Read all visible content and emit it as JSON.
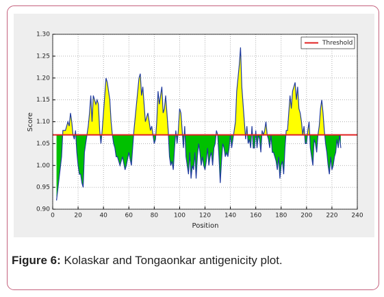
{
  "chart_data": {
    "type": "area-threshold",
    "xlabel": "Position",
    "ylabel": "Score",
    "x": [
      3,
      5,
      7,
      8,
      10,
      12,
      13,
      14,
      15,
      16,
      17,
      18,
      19,
      20,
      21,
      22,
      23,
      24,
      25,
      26,
      27,
      28,
      29,
      30,
      31,
      32,
      33,
      34,
      35,
      36,
      37,
      38,
      39,
      40,
      41,
      42,
      43,
      44,
      45,
      46,
      47,
      48,
      49,
      50,
      51,
      52,
      53,
      55,
      57,
      58,
      60,
      62,
      64,
      66,
      67,
      68,
      69,
      70,
      71,
      72,
      73,
      75,
      77,
      78,
      79,
      80,
      81,
      82,
      83,
      84,
      85,
      86,
      87,
      88,
      89,
      90,
      91,
      92,
      93,
      94,
      95,
      96,
      97,
      98,
      99,
      100,
      101,
      102,
      103,
      104,
      105,
      106,
      107,
      108,
      109,
      110,
      111,
      112,
      113,
      114,
      115,
      116,
      117,
      118,
      119,
      120,
      121,
      122,
      123,
      124,
      125,
      126,
      127,
      128,
      129,
      130,
      131,
      132,
      133,
      134,
      135,
      136,
      137,
      138,
      139,
      140,
      141,
      142,
      143,
      144,
      145,
      146,
      147,
      148,
      149,
      150,
      151,
      152,
      153,
      154,
      155,
      156,
      157,
      158,
      159,
      160,
      161,
      162,
      163,
      164,
      165,
      166,
      167,
      168,
      169,
      170,
      171,
      172,
      173,
      174,
      175,
      176,
      177,
      178,
      179,
      180,
      181,
      182,
      183,
      184,
      185,
      186,
      187,
      188,
      189,
      190,
      191,
      192,
      193,
      194,
      195,
      196,
      197,
      198,
      199,
      200,
      201,
      202,
      203,
      204,
      205,
      206,
      207,
      208,
      209,
      210,
      211,
      212,
      213,
      214,
      215,
      216,
      217,
      218,
      219,
      220,
      221,
      222,
      223,
      224,
      225,
      226,
      227
    ],
    "series": [
      {
        "color": "#1f3a9e",
        "above_color": "#ffff00",
        "below_color": "#00c000",
        "values": [
          0.92,
          0.97,
          1.02,
          1.08,
          1.08,
          1.1,
          1.09,
          1.12,
          1.1,
          1.07,
          1.06,
          1.08,
          1.03,
          1.0,
          0.98,
          0.98,
          0.96,
          0.95,
          1.03,
          1.05,
          1.07,
          1.09,
          1.12,
          1.16,
          1.1,
          1.16,
          1.15,
          1.14,
          1.15,
          1.14,
          1.08,
          1.05,
          1.08,
          1.12,
          1.16,
          1.2,
          1.19,
          1.17,
          1.15,
          1.1,
          1.07,
          1.05,
          1.04,
          1.02,
          1.02,
          1.01,
          1.0,
          1.02,
          0.99,
          1.0,
          1.03,
          1.0,
          1.08,
          1.14,
          1.17,
          1.2,
          1.21,
          1.16,
          1.18,
          1.14,
          1.1,
          1.12,
          1.08,
          1.09,
          1.07,
          1.05,
          1.06,
          1.1,
          1.17,
          1.14,
          1.16,
          1.18,
          1.12,
          1.13,
          1.16,
          1.12,
          1.08,
          1.02,
          1.0,
          1.01,
          0.99,
          1.04,
          1.08,
          1.05,
          1.08,
          1.13,
          1.12,
          1.08,
          1.04,
          1.09,
          1.02,
          1.0,
          0.98,
          1.03,
          0.97,
          1.0,
          0.99,
          1.03,
          0.97,
          1.02,
          1.05,
          1.03,
          1.0,
          1.02,
          1.0,
          0.99,
          1.01,
          1.04,
          1.0,
          1.02,
          1.03,
          1.0,
          1.04,
          1.05,
          1.08,
          1.07,
          1.02,
          0.96,
          1.01,
          1.05,
          1.04,
          1.02,
          1.03,
          1.02,
          1.04,
          1.07,
          1.04,
          1.06,
          1.08,
          1.1,
          1.17,
          1.2,
          1.23,
          1.27,
          1.18,
          1.14,
          1.1,
          1.06,
          1.09,
          1.05,
          1.06,
          1.04,
          1.09,
          1.04,
          1.04,
          1.08,
          1.04,
          1.07,
          1.06,
          1.03,
          1.08,
          1.07,
          1.08,
          1.1,
          1.07,
          1.06,
          1.04,
          1.07,
          1.03,
          1.03,
          1.02,
          1.01,
          0.99,
          1.02,
          0.97,
          1.0,
          1.01,
          0.98,
          1.04,
          1.08,
          1.08,
          1.12,
          1.16,
          1.13,
          1.17,
          1.18,
          1.19,
          1.15,
          1.18,
          1.13,
          1.12,
          1.1,
          1.07,
          1.09,
          1.05,
          1.05,
          1.08,
          1.1,
          1.04,
          1.02,
          1.0,
          1.06,
          1.05,
          1.03,
          1.07,
          1.09,
          1.13,
          1.15,
          1.12,
          1.08,
          1.05,
          1.03,
          1.0,
          0.98,
          1.02,
          0.99,
          1.0,
          1.02,
          1.03,
          1.06,
          1.04,
          1.07,
          1.04
        ]
      }
    ],
    "threshold": {
      "name": "Threshold",
      "value": 1.07,
      "color": "#e02020"
    },
    "xlim": [
      0,
      240
    ],
    "xticks": [
      0,
      20,
      40,
      60,
      80,
      100,
      120,
      140,
      160,
      180,
      200,
      220,
      240
    ],
    "ylim": [
      0.9,
      1.3
    ],
    "yticks": [
      {
        "value": 0.9,
        "label": "0.90"
      },
      {
        "value": 0.95,
        "label": "0.95"
      },
      {
        "value": 1.0,
        "label": "1.00"
      },
      {
        "value": 1.05,
        "label": "1.05"
      },
      {
        "value": 1.1,
        "label": "1.10"
      },
      {
        "value": 1.15,
        "label": "1.15"
      },
      {
        "value": 1.2,
        "label": "1.20"
      },
      {
        "value": 1.25,
        "label": "1.25"
      },
      {
        "value": 1.3,
        "label": "1.30"
      }
    ],
    "grid": true,
    "legend": "upper right"
  },
  "caption": {
    "label": "Figure 6:",
    "text": "Kolaskar and Tongaonkar antigenicity plot."
  }
}
